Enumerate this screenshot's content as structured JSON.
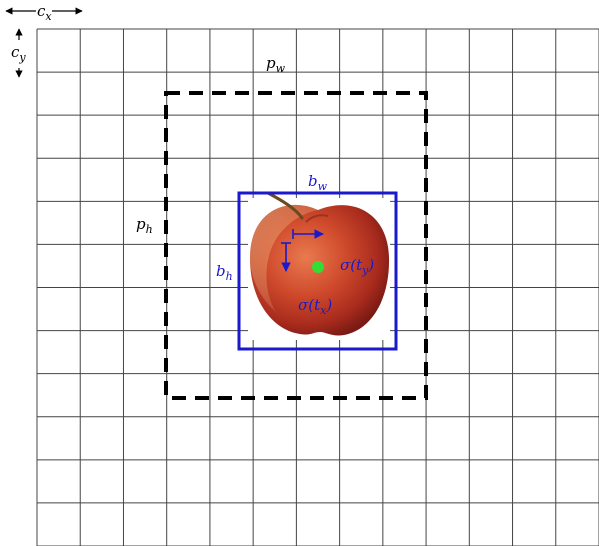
{
  "diagram": {
    "grid": {
      "columns": 13,
      "rows": 12
    },
    "labels": {
      "cx": {
        "main": "c",
        "sub": "x"
      },
      "cy": {
        "main": "c",
        "sub": "y"
      },
      "pw": {
        "main": "p",
        "sub": "w"
      },
      "ph": {
        "main": "p",
        "sub": "h"
      },
      "bw": {
        "main": "b",
        "sub": "w"
      },
      "bh": {
        "main": "b",
        "sub": "h"
      },
      "sigma_tx": {
        "pre": "σ(t",
        "sub": "x",
        "post": ")"
      },
      "sigma_ty": {
        "pre": "σ(t",
        "sub": "y",
        "post": ")"
      }
    },
    "prior_box": {
      "style": "dashed",
      "color": "#000000"
    },
    "bounding_box": {
      "color": "#1a1acc"
    },
    "center_point": {
      "color": "#33dd33"
    },
    "object": {
      "name": "apple"
    },
    "colors": {
      "label_black": "#000000",
      "label_blue": "#1a1acc",
      "grid": "#444444"
    }
  }
}
